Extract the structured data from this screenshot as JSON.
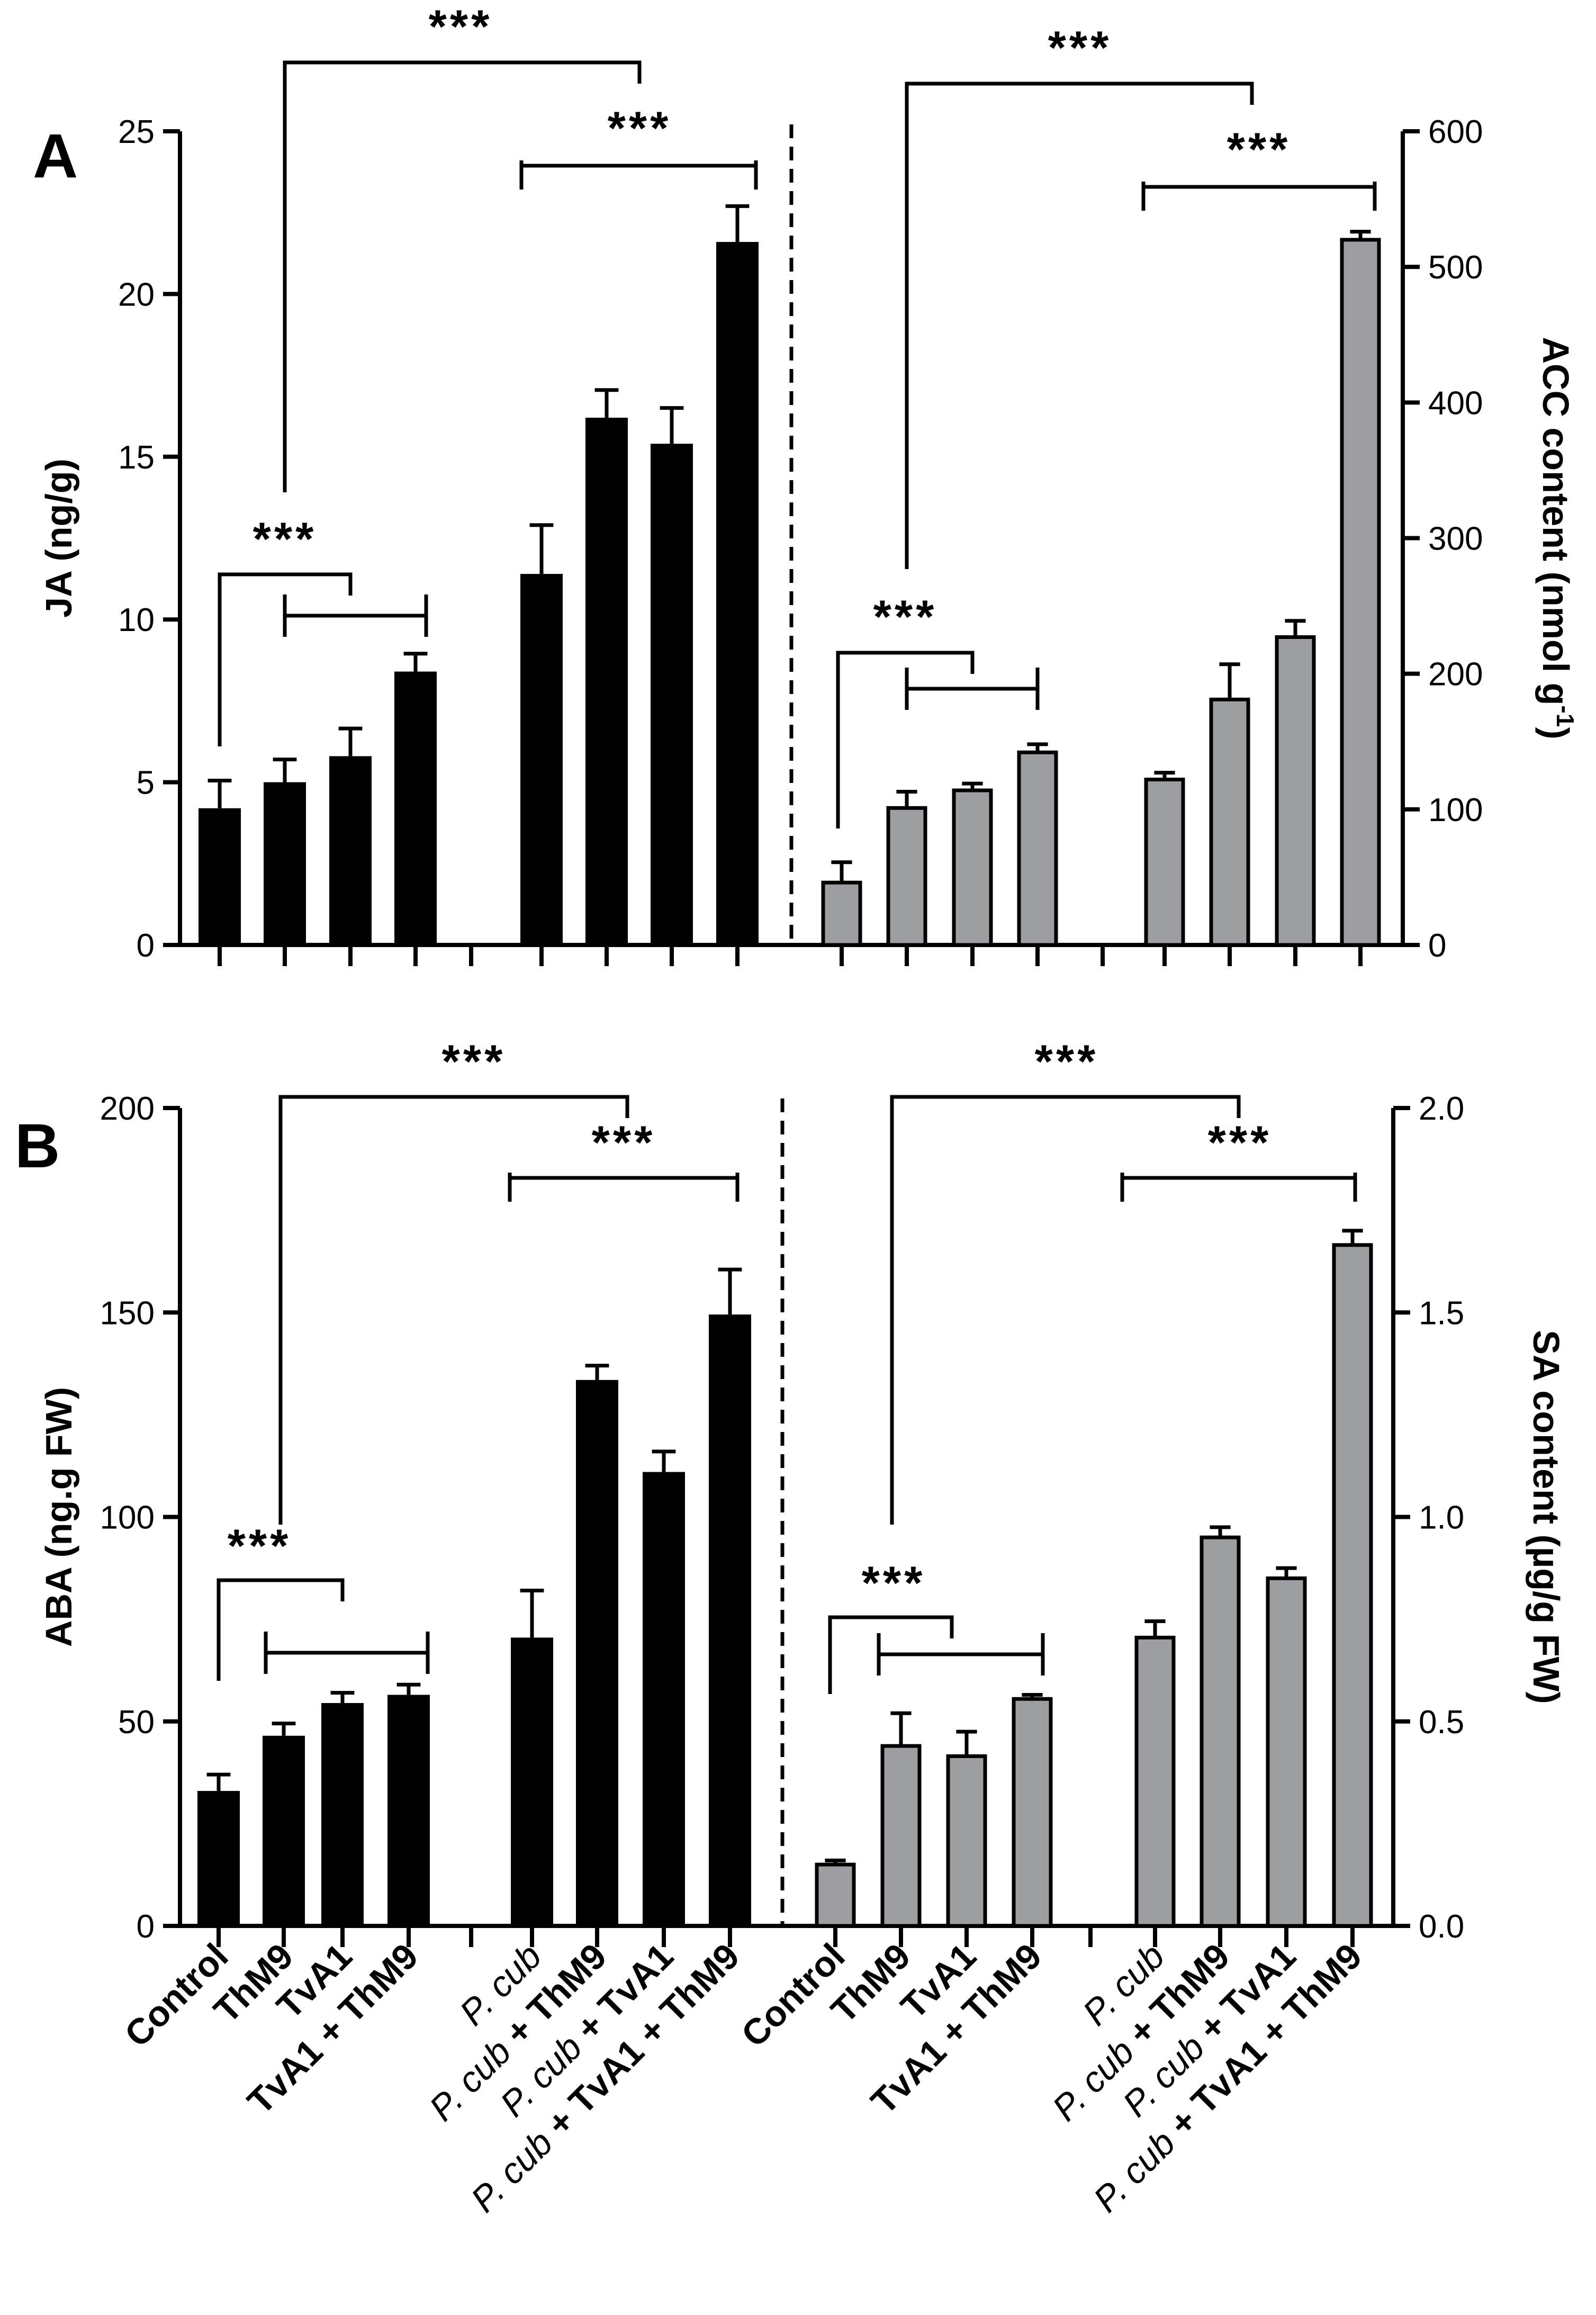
{
  "colors": {
    "black_bar": "#000000",
    "gray_bar": "#9d9ea2",
    "axis": "#000000"
  },
  "categories": [
    [
      "Control"
    ],
    [
      "ThM9"
    ],
    [
      "TvA1"
    ],
    [
      "TvA1 + ThM9"
    ],
    [
      {
        "t": "P. cub",
        "i": true
      }
    ],
    [
      {
        "t": "P. cub",
        "i": true
      },
      {
        "t": " + ThM9",
        "i": false
      }
    ],
    [
      {
        "t": "P. cub",
        "i": true
      },
      {
        "t": " + TvA1",
        "i": false
      }
    ],
    [
      {
        "t": "P. cub",
        "i": true
      },
      {
        "t": " + TvA1 + ThM9",
        "i": false
      }
    ]
  ],
  "chart_data": [
    {
      "type": "bar",
      "panel": "A",
      "ylabel": "JA (ng/g)",
      "ylim": [
        0,
        25
      ],
      "yticks": [
        "0",
        "5",
        "10",
        "15",
        "20",
        "25"
      ],
      "color": "#000000",
      "values": [
        4.2,
        5.0,
        5.8,
        8.4,
        11.4,
        16.2,
        15.4,
        21.6
      ],
      "errors": [
        0.85,
        0.7,
        0.85,
        0.55,
        1.5,
        0.85,
        1.1,
        1.1
      ],
      "significance": [
        {
          "label": "***",
          "groups": [
            0,
            [
              2,
              3
            ]
          ]
        },
        {
          "label": "***",
          "groups": [
            [
              0,
              3
            ],
            [
              4,
              7
            ]
          ]
        },
        {
          "label": "***",
          "groups": [
            4,
            7
          ]
        }
      ]
    },
    {
      "type": "bar",
      "panel": "A",
      "ylabel": "ACC content (nmol g-1)",
      "ylabel_main": "ACC content (nmol g",
      "ylabel_sup": "-1",
      "ylabel_end": ")",
      "ylim": [
        0,
        600
      ],
      "yticks": [
        "0",
        "100",
        "200",
        "300",
        "400",
        "500",
        "600"
      ],
      "color": "#9d9ea2",
      "values": [
        46,
        101,
        114,
        142,
        122,
        181,
        227,
        520
      ],
      "errors": [
        15,
        12,
        5,
        6,
        5,
        26,
        12,
        6
      ],
      "significance": [
        {
          "label": "***",
          "groups": [
            0,
            [
              2,
              3
            ]
          ]
        },
        {
          "label": "***",
          "groups": [
            [
              0,
              3
            ],
            [
              4,
              7
            ]
          ]
        },
        {
          "label": "***",
          "groups": [
            4,
            7
          ]
        }
      ]
    },
    {
      "type": "bar",
      "panel": "B",
      "ylabel": "ABA (ng.g FW)",
      "ylim": [
        0,
        200
      ],
      "yticks": [
        "0",
        "50",
        "100",
        "150",
        "200"
      ],
      "color": "#000000",
      "values": [
        33,
        46.5,
        54.5,
        56.5,
        70.5,
        133.5,
        111,
        149.5
      ],
      "errors": [
        4,
        3,
        2.5,
        2.5,
        11.5,
        3.5,
        5,
        11
      ],
      "significance": [
        {
          "label": "***",
          "groups": [
            0,
            [
              2,
              3
            ]
          ]
        },
        {
          "label": "***",
          "groups": [
            [
              0,
              3
            ],
            [
              4,
              7
            ]
          ]
        },
        {
          "label": "***",
          "groups": [
            4,
            7
          ]
        }
      ]
    },
    {
      "type": "bar",
      "panel": "B",
      "ylabel": "SA content (µg/g FW)",
      "ylim": [
        0,
        2.0
      ],
      "yticks": [
        "0.0",
        "0.5",
        "1.0",
        "1.5",
        "2.0"
      ],
      "color": "#9d9ea2",
      "values": [
        0.15,
        0.44,
        0.415,
        0.555,
        0.705,
        0.95,
        0.85,
        1.665
      ],
      "errors": [
        0.01,
        0.08,
        0.06,
        0.01,
        0.04,
        0.025,
        0.025,
        0.035
      ],
      "significance": [
        {
          "label": "***",
          "groups": [
            0,
            [
              2,
              3
            ]
          ]
        },
        {
          "label": "***",
          "groups": [
            [
              0,
              3
            ],
            [
              4,
              7
            ]
          ]
        },
        {
          "label": "***",
          "groups": [
            4,
            7
          ]
        }
      ]
    }
  ],
  "panel_labels": [
    "A",
    "B"
  ]
}
